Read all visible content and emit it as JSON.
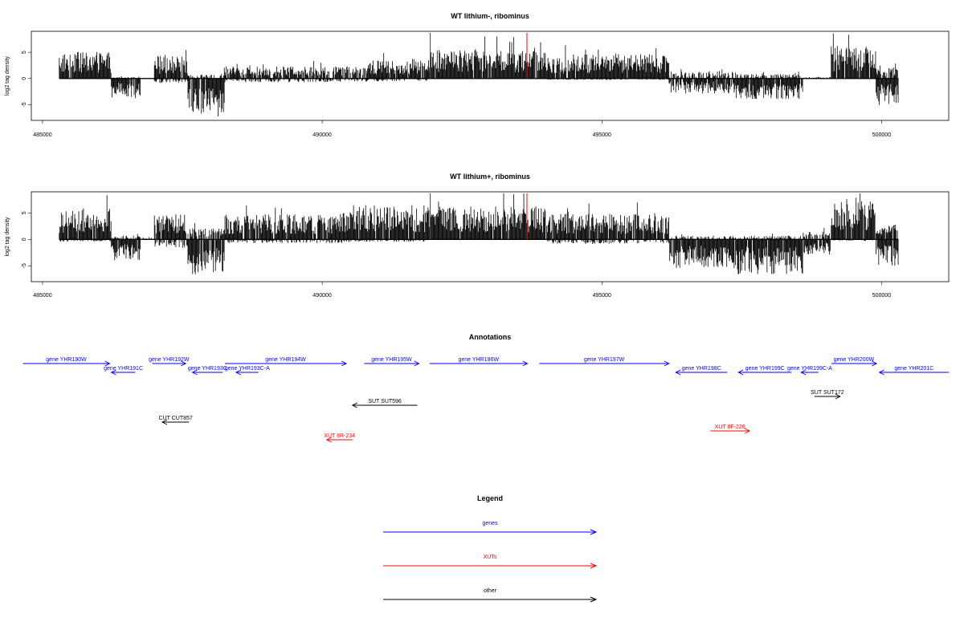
{
  "figure": {
    "annotations_title": "Annotations",
    "legend_title": "Legend"
  },
  "colors": {
    "gene": "#0000ff",
    "xut": "#ff0000",
    "other": "#000000",
    "density": "#000000",
    "marker": "#ff0000"
  },
  "chart_data": [
    {
      "type": "bar",
      "subtype": "signed-density-track",
      "title": "WT lithium-, ribominus",
      "ylabel": "log2 tag density",
      "xlim": [
        484800,
        501200
      ],
      "ylim": [
        -8,
        9
      ],
      "x_ticks": [
        485000,
        490000,
        495000,
        500000
      ],
      "y_ticks": [
        -5,
        0,
        5
      ],
      "data_range": [
        485300,
        500300
      ],
      "marker_lines_x": [
        491930,
        493660
      ],
      "segments": [
        {
          "start": 485300,
          "end": 486230,
          "plus": 3.5,
          "minus": 0
        },
        {
          "start": 486230,
          "end": 486750,
          "plus": 0.2,
          "minus": -2.6
        },
        {
          "start": 486750,
          "end": 487000,
          "plus": 0,
          "minus": 0
        },
        {
          "start": 487000,
          "end": 487600,
          "plus": 3.0,
          "minus": -0.6
        },
        {
          "start": 487600,
          "end": 488250,
          "plus": 0.5,
          "minus": -5.0
        },
        {
          "start": 488250,
          "end": 490800,
          "plus": 1.6,
          "minus": -0.5
        },
        {
          "start": 490800,
          "end": 491900,
          "plus": 2.6,
          "minus": -0.4
        },
        {
          "start": 491900,
          "end": 494000,
          "plus": 3.8,
          "minus": 0
        },
        {
          "start": 494000,
          "end": 496200,
          "plus": 3.2,
          "minus": -0.2
        },
        {
          "start": 496200,
          "end": 497400,
          "plus": 1.0,
          "minus": -2.0
        },
        {
          "start": 497400,
          "end": 498600,
          "plus": 0.6,
          "minus": -2.8
        },
        {
          "start": 498600,
          "end": 499100,
          "plus": 0.2,
          "minus": 0
        },
        {
          "start": 499100,
          "end": 499900,
          "plus": 4.2,
          "minus": 0
        },
        {
          "start": 499900,
          "end": 500300,
          "plus": 1.5,
          "minus": -3.5
        }
      ]
    },
    {
      "type": "bar",
      "subtype": "signed-density-track",
      "title": "WT lithium+, ribominus",
      "ylabel": "log2 tag density",
      "xlim": [
        484800,
        501200
      ],
      "ylim": [
        -8,
        9
      ],
      "x_ticks": [
        485000,
        490000,
        495000,
        500000
      ],
      "y_ticks": [
        -5,
        0,
        5
      ],
      "data_range": [
        485300,
        500300
      ],
      "marker_lines_x": [
        491930,
        493660
      ],
      "segments": [
        {
          "start": 485300,
          "end": 486230,
          "plus": 4.0,
          "minus": -0.3
        },
        {
          "start": 486230,
          "end": 486750,
          "plus": 0.5,
          "minus": -2.8
        },
        {
          "start": 486750,
          "end": 487000,
          "plus": 0.3,
          "minus": 0
        },
        {
          "start": 487000,
          "end": 487600,
          "plus": 3.3,
          "minus": -1.2
        },
        {
          "start": 487600,
          "end": 488250,
          "plus": 1.5,
          "minus": -4.8
        },
        {
          "start": 488250,
          "end": 490500,
          "plus": 3.3,
          "minus": -0.5
        },
        {
          "start": 490500,
          "end": 491900,
          "plus": 4.5,
          "minus": -0.3
        },
        {
          "start": 491900,
          "end": 494000,
          "plus": 4.3,
          "minus": 0
        },
        {
          "start": 494000,
          "end": 496200,
          "plus": 3.3,
          "minus": -0.6
        },
        {
          "start": 496200,
          "end": 497400,
          "plus": 0.5,
          "minus": -3.8
        },
        {
          "start": 497400,
          "end": 498600,
          "plus": 0.5,
          "minus": -4.6
        },
        {
          "start": 498600,
          "end": 499100,
          "plus": 1.0,
          "minus": -2.0
        },
        {
          "start": 499100,
          "end": 499900,
          "plus": 5.0,
          "minus": -0.2
        },
        {
          "start": 499900,
          "end": 500300,
          "plus": 2.0,
          "minus": -3.5
        }
      ]
    }
  ],
  "annotations": [
    {
      "label": "gene YHR190W",
      "kind": "gene",
      "strand": "+",
      "start": 484650,
      "end": 486200,
      "row": 1
    },
    {
      "label": "gene YHR191C",
      "kind": "gene",
      "strand": "-",
      "start": 486230,
      "end": 486660,
      "row": 2
    },
    {
      "label": "gene YHR192W",
      "kind": "gene",
      "strand": "+",
      "start": 486960,
      "end": 487560,
      "row": 1
    },
    {
      "label": "gene YHR193C",
      "kind": "gene",
      "strand": "-",
      "start": 487680,
      "end": 488220,
      "row": 2
    },
    {
      "label": "gene YHR193C-A",
      "kind": "gene",
      "strand": "-",
      "start": 488460,
      "end": 488860,
      "row": 2
    },
    {
      "label": "gene YHR194W",
      "kind": "gene",
      "strand": "+",
      "start": 488260,
      "end": 490430,
      "row": 1
    },
    {
      "label": "gene YHR195W",
      "kind": "gene",
      "strand": "+",
      "start": 490750,
      "end": 491730,
      "row": 1
    },
    {
      "label": "gene YHR196W",
      "kind": "gene",
      "strand": "+",
      "start": 491920,
      "end": 493670,
      "row": 1
    },
    {
      "label": "gene YHR197W",
      "kind": "gene",
      "strand": "+",
      "start": 493880,
      "end": 496200,
      "row": 1
    },
    {
      "label": "gene YHR198C",
      "kind": "gene",
      "strand": "-",
      "start": 496320,
      "end": 497240,
      "row": 2
    },
    {
      "label": "gene YHR199C",
      "kind": "gene",
      "strand": "-",
      "start": 497440,
      "end": 498390,
      "row": 2
    },
    {
      "label": "gene YHR199C-A",
      "kind": "gene",
      "strand": "-",
      "start": 498560,
      "end": 498870,
      "row": 2
    },
    {
      "label": "gene YHR200W",
      "kind": "gene",
      "strand": "+",
      "start": 499100,
      "end": 499910,
      "row": 1
    },
    {
      "label": "gene YHR201C",
      "kind": "gene",
      "strand": "-",
      "start": 499960,
      "end": 501200,
      "row": 2
    },
    {
      "label": "SUT SUT596",
      "kind": "other",
      "strand": "-",
      "start": 490540,
      "end": 491700,
      "row": 4
    },
    {
      "label": "SUT SUT172",
      "kind": "other",
      "strand": "+",
      "start": 498800,
      "end": 499260,
      "row": 5
    },
    {
      "label": "CUT CUT857",
      "kind": "other",
      "strand": "-",
      "start": 487140,
      "end": 487620,
      "row": 6
    },
    {
      "label": "XUT 8F-226",
      "kind": "xut",
      "strand": "+",
      "start": 496940,
      "end": 497640,
      "row": 7
    },
    {
      "label": "XUT 8R-234",
      "kind": "xut",
      "strand": "-",
      "start": 490080,
      "end": 490540,
      "row": 8
    }
  ],
  "legend": [
    {
      "label": "genes",
      "kind": "gene"
    },
    {
      "label": "XUTs",
      "kind": "xut"
    },
    {
      "label": "other",
      "kind": "other"
    }
  ]
}
